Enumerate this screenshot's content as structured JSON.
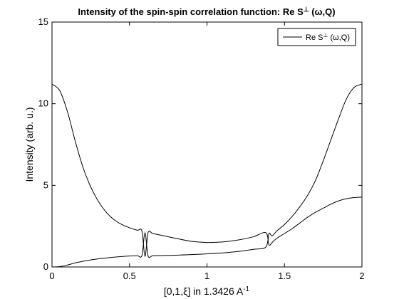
{
  "chart_data": {
    "type": "line",
    "title_main": "Intensity of the spin-spin correlation function: Re S",
    "title_sup": "⊥",
    "title_tail": " (ω,Q)",
    "xlabel_main": "[0,1,ξ] in 1.3426 A",
    "xlabel_sup": "-1",
    "ylabel": "Intensity (arb. u.)",
    "xlim": [
      0,
      2
    ],
    "ylim": [
      0,
      15
    ],
    "xticks": [
      0,
      0.5,
      1,
      1.5,
      2
    ],
    "xtick_labels": [
      "0",
      "0.5",
      "1",
      "1.5",
      "2"
    ],
    "yticks": [
      0,
      5,
      10,
      15
    ],
    "ytick_labels": [
      "0",
      "5",
      "10",
      "15"
    ],
    "grid": false,
    "legend_placement": "top-right",
    "legend": {
      "main": "Re S",
      "sup": "⊥",
      "tail": " (ω,Q)"
    },
    "color": "#000000",
    "series": [
      {
        "name": "Re S⊥ (ω,Q)",
        "branch": "upper",
        "x": [
          0.0,
          0.05,
          0.1,
          0.15,
          0.2,
          0.25,
          0.3,
          0.35,
          0.4,
          0.45,
          0.5,
          0.55,
          0.58,
          0.6,
          0.62,
          0.65,
          0.7,
          0.8,
          0.9,
          1.0,
          1.1,
          1.2,
          1.3,
          1.38,
          1.4,
          1.42,
          1.45,
          1.5,
          1.55,
          1.6,
          1.65,
          1.7,
          1.75,
          1.8,
          1.85,
          1.9,
          1.95,
          2.0
        ],
        "y": [
          11.2,
          10.8,
          9.5,
          7.7,
          6.1,
          4.9,
          4.0,
          3.35,
          2.9,
          2.6,
          2.4,
          2.25,
          2.2,
          0.65,
          2.1,
          2.05,
          1.95,
          1.75,
          1.57,
          1.5,
          1.53,
          1.65,
          1.85,
          2.1,
          1.35,
          1.5,
          1.75,
          2.05,
          2.35,
          2.7,
          3.05,
          3.35,
          3.6,
          3.85,
          4.05,
          4.18,
          4.25,
          4.28
        ]
      },
      {
        "name": "",
        "branch": "lower",
        "x": [
          0.0,
          0.05,
          0.1,
          0.15,
          0.2,
          0.25,
          0.3,
          0.35,
          0.4,
          0.45,
          0.5,
          0.55,
          0.58,
          0.6,
          0.62,
          0.65,
          0.7,
          0.8,
          0.9,
          1.0,
          1.1,
          1.2,
          1.3,
          1.38,
          1.4,
          1.42,
          1.45,
          1.5,
          1.55,
          1.6,
          1.65,
          1.7,
          1.75,
          1.8,
          1.85,
          1.9,
          1.95,
          2.0
        ],
        "y": [
          0.0,
          0.02,
          0.12,
          0.25,
          0.35,
          0.43,
          0.5,
          0.55,
          0.6,
          0.64,
          0.67,
          0.69,
          0.7,
          2.1,
          0.68,
          0.69,
          0.7,
          0.72,
          0.76,
          0.8,
          0.86,
          0.95,
          1.08,
          1.22,
          2.05,
          1.9,
          2.2,
          2.6,
          3.1,
          3.7,
          4.4,
          5.3,
          6.5,
          7.8,
          9.1,
          10.3,
          11.0,
          11.2
        ]
      }
    ]
  }
}
